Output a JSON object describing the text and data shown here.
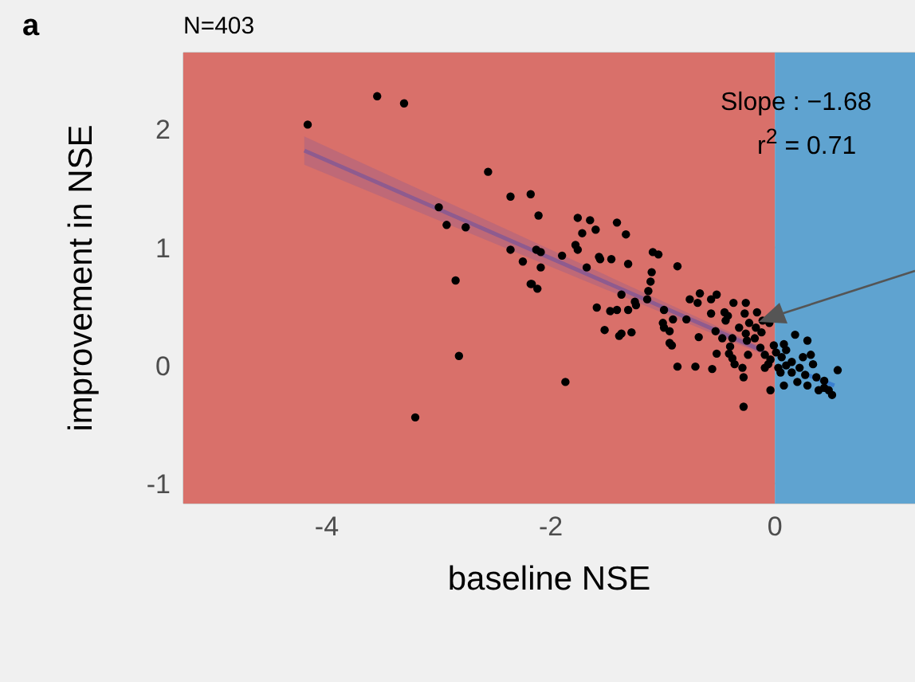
{
  "chart_data": {
    "type": "scatter",
    "title": "N=403",
    "xlabel": "baseline NSE",
    "ylabel": "improvement in NSE",
    "annotations": [
      "a",
      "Slope : −1.68",
      "r$^{2}$ = 0.71"
    ],
    "xlim": [
      -5.28,
      1.25
    ],
    "ylim": [
      -1.17,
      2.65
    ],
    "xticks": [
      -4,
      -2,
      0
    ],
    "yticks": [
      -1,
      0,
      1,
      2
    ],
    "grid": true,
    "bands": [
      {
        "axis": "x",
        "from": -5.28,
        "to": 0,
        "color": "#d9706a"
      },
      {
        "axis": "x",
        "from": 0,
        "to": 1.25,
        "color": "#5fa3d0"
      }
    ],
    "series": [
      {
        "marker": "circle",
        "color": "#000000",
        "x": [
          -4.17,
          -3.55,
          -3.31,
          -2.56,
          -3.0,
          -2.93,
          -2.76,
          -2.36,
          -2.18,
          -2.11,
          -2.36,
          -2.13,
          -2.09,
          -2.25,
          -2.09,
          -1.9,
          -2.85,
          -2.18,
          -2.17,
          -2.12,
          -2.82,
          -1.87,
          -3.21,
          -1.76,
          -1.65,
          -1.6,
          -1.41,
          -1.72,
          -1.33,
          -1.78,
          -1.76,
          -1.57,
          -1.56,
          -1.46,
          -1.09,
          -1.04,
          -1.31,
          -1.68,
          -0.87,
          -1.1,
          -1.11,
          -1.13,
          -1.37,
          -0.67,
          -0.52,
          -0.76,
          -0.69,
          -0.57,
          -1.25,
          -1.24,
          -1.14,
          -1.59,
          -1.47,
          -1.41,
          -1.31,
          -0.99,
          -0.37,
          -0.26,
          -0.16,
          -0.27,
          -0.45,
          -0.91,
          -0.79,
          -0.57,
          -1.0,
          -0.99,
          -0.94,
          -1.52,
          -1.37,
          -1.39,
          -1.28,
          -0.68,
          -0.53,
          -0.44,
          -0.42,
          -0.32,
          -0.23,
          -0.11,
          -0.05,
          -0.17,
          -0.12,
          -0.26,
          -0.47,
          -0.38,
          -0.18,
          -0.94,
          -0.92,
          -0.4,
          -0.25,
          -0.52,
          -0.41,
          -0.38,
          -0.24,
          -0.87,
          -0.71,
          -0.56,
          -0.36,
          -0.29,
          -0.28,
          -0.04,
          -0.28,
          -0.13,
          -0.09,
          -0.04,
          0.01,
          0.06,
          0.1,
          0.18,
          0.29,
          0.15,
          0.25,
          0.22,
          0.34,
          0.37,
          0.44,
          0.48,
          0.56,
          0.51,
          0.39,
          0.29,
          0.2,
          0.08,
          0.03,
          -0.06,
          -0.01,
          0.1,
          0.15,
          0.27,
          0.32,
          0.08,
          0.05,
          -0.09,
          0.44
        ],
        "values": [
          2.04,
          2.28,
          2.22,
          1.64,
          1.34,
          1.19,
          1.17,
          1.43,
          1.45,
          1.27,
          0.98,
          0.98,
          0.96,
          0.88,
          0.83,
          0.93,
          0.72,
          0.69,
          0.69,
          0.65,
          0.08,
          -0.14,
          -0.44,
          1.25,
          1.23,
          1.15,
          1.21,
          1.12,
          1.11,
          1.02,
          0.98,
          0.92,
          0.9,
          0.9,
          0.96,
          0.94,
          0.86,
          0.83,
          0.84,
          0.79,
          0.71,
          0.63,
          0.6,
          0.61,
          0.6,
          0.56,
          0.53,
          0.56,
          0.54,
          0.51,
          0.56,
          0.49,
          0.46,
          0.47,
          0.47,
          0.47,
          0.53,
          0.53,
          0.45,
          0.44,
          0.45,
          0.39,
          0.39,
          0.44,
          0.36,
          0.32,
          0.29,
          0.3,
          0.27,
          0.25,
          0.28,
          0.24,
          0.29,
          0.38,
          0.42,
          0.32,
          0.36,
          0.38,
          0.36,
          0.32,
          0.28,
          0.27,
          0.23,
          0.23,
          0.23,
          0.19,
          0.17,
          0.16,
          0.21,
          0.1,
          0.1,
          0.06,
          0.09,
          -0.01,
          -0.01,
          -0.03,
          0.01,
          -0.02,
          -0.1,
          -0.21,
          -0.35,
          0.15,
          0.09,
          0.05,
          0.11,
          0.07,
          0.13,
          0.26,
          0.21,
          0.03,
          0.07,
          -0.02,
          0.01,
          -0.1,
          -0.13,
          -0.21,
          -0.04,
          -0.25,
          -0.21,
          -0.17,
          -0.14,
          -0.17,
          -0.02,
          0.01,
          0.17,
          0.0,
          -0.06,
          -0.08,
          0.09,
          0.18,
          -0.06,
          -0.02,
          -0.19
        ]
      },
      {
        "type": "line",
        "marker": "none",
        "color": "#8e5b8f",
        "x": [
          -4.2,
          -0.1
        ],
        "values": [
          1.82,
          0.12
        ],
        "lower": [
          1.7,
          0.09
        ],
        "upper": [
          1.94,
          0.15
        ]
      },
      {
        "type": "line",
        "marker": "none",
        "color": "#3a7fd0",
        "x": [
          0.29,
          0.53
        ],
        "values": [
          -0.08,
          -0.17
        ]
      }
    ]
  }
}
